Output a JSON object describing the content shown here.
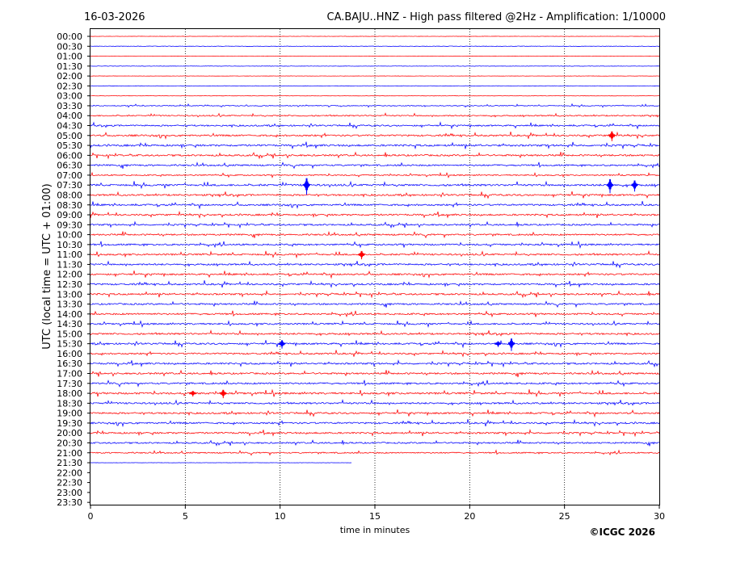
{
  "header": {
    "date": "16-03-2026",
    "title": "CA.BAJU..HNZ - High pass filtered @2Hz - Amplification: 1/10000"
  },
  "footer": {
    "copyright": "©ICGC 2026"
  },
  "colors": {
    "trace_red": "#ff0000",
    "trace_blue": "#0000ff",
    "axis": "#000000",
    "grid": "#000000"
  },
  "chart_data": {
    "type": "line",
    "title": "CA.BAJU..HNZ - High pass filtered @2Hz - Amplification: 1/10000",
    "xlabel": "time in minutes",
    "ylabel": "UTC (local time = UTC + 01:00)",
    "xlim": [
      0,
      30
    ],
    "x_ticks": [
      0,
      5,
      10,
      15,
      20,
      25,
      30
    ],
    "grid": "vertical dotted lines at every 5 minutes",
    "row_labels": [
      "00:00",
      "00:30",
      "01:00",
      "01:30",
      "02:00",
      "02:30",
      "03:00",
      "03:30",
      "04:00",
      "04:30",
      "05:00",
      "05:30",
      "06:00",
      "06:30",
      "07:00",
      "07:30",
      "08:00",
      "08:30",
      "09:00",
      "09:30",
      "10:00",
      "10:30",
      "11:00",
      "11:30",
      "12:00",
      "12:30",
      "13:00",
      "13:30",
      "14:00",
      "14:30",
      "15:00",
      "15:30",
      "16:00",
      "16:30",
      "17:00",
      "17:30",
      "18:00",
      "18:30",
      "19:00",
      "19:30",
      "20:00",
      "20:30",
      "21:00",
      "21:30",
      "22:00",
      "22:30",
      "23:00",
      "23:30"
    ],
    "series_colors_alternating": [
      "#ff0000",
      "#0000ff"
    ],
    "trace_end_minutes": [
      30,
      30,
      30,
      30,
      30,
      30,
      30,
      30,
      30,
      30,
      30,
      30,
      30,
      30,
      30,
      30,
      30,
      30,
      30,
      30,
      30,
      30,
      30,
      30,
      30,
      30,
      30,
      30,
      30,
      30,
      30,
      30,
      30,
      30,
      30,
      30,
      30,
      30,
      30,
      30,
      30,
      30,
      30,
      13.8,
      null,
      null,
      null,
      null
    ],
    "trace_activity": [
      0.3,
      0.5,
      0.3,
      0.4,
      0.3,
      0.4,
      0.3,
      0.8,
      1.2,
      1.4,
      1.6,
      1.8,
      1.6,
      1.5,
      1.2,
      1.8,
      1.6,
      1.6,
      1.6,
      1.5,
      1.5,
      1.6,
      1.6,
      1.6,
      1.6,
      1.6,
      1.6,
      1.5,
      1.6,
      1.5,
      1.6,
      1.6,
      1.5,
      1.6,
      1.6,
      1.6,
      1.8,
      1.6,
      1.6,
      1.6,
      1.6,
      1.4,
      1.2,
      0.3,
      0,
      0,
      0,
      0
    ],
    "events": [
      {
        "row": "05:00",
        "minute": 27.5,
        "amplitude": 7
      },
      {
        "row": "07:30",
        "minute": 11.4,
        "amplitude": 12
      },
      {
        "row": "07:30",
        "minute": 27.4,
        "amplitude": 10
      },
      {
        "row": "07:30",
        "minute": 28.7,
        "amplitude": 8
      },
      {
        "row": "11:00",
        "minute": 14.3,
        "amplitude": 6
      },
      {
        "row": "15:30",
        "minute": 10.1,
        "amplitude": 6
      },
      {
        "row": "15:30",
        "minute": 22.2,
        "amplitude": 9
      },
      {
        "row": "15:30",
        "minute": 21.5,
        "amplitude": 4
      },
      {
        "row": "18:00",
        "minute": 7.0,
        "amplitude": 6
      },
      {
        "row": "18:00",
        "minute": 5.4,
        "amplitude": 4
      }
    ]
  }
}
